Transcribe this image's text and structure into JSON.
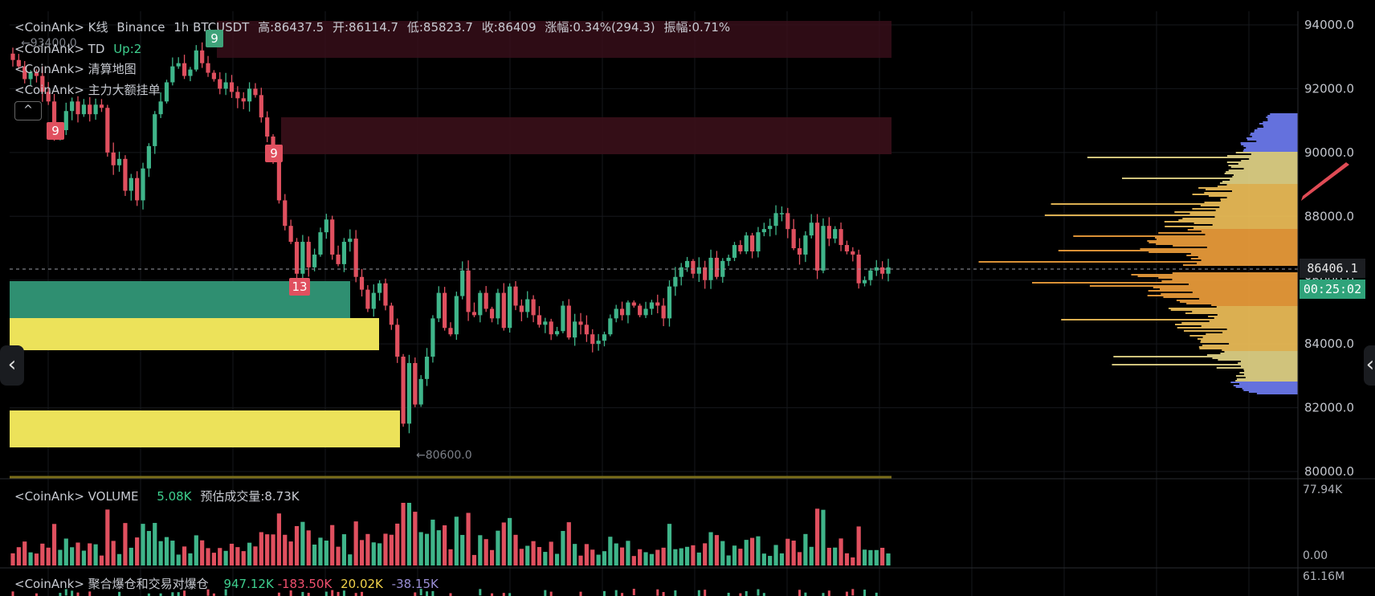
{
  "legend": {
    "kline": {
      "label": "<CoinAnk> K线",
      "exchange": "Binance",
      "interval": "1h",
      "symbol": "BTCUSDT",
      "high": "高:86437.5",
      "open": "开:86114.7",
      "low": "低:85823.7",
      "close": "收:86409",
      "change": "涨幅:0.34%(294.3)",
      "amplitude": "振幅:0.71%"
    },
    "td": {
      "label": "<CoinAnk> TD",
      "value": "Up:2"
    },
    "liq_map": {
      "label": "<CoinAnk> 清算地图"
    },
    "big_orders": {
      "label": "<CoinAnk> 主力大额挂单"
    },
    "volume": {
      "label": "<CoinAnk> VOLUME",
      "value": "5.08K",
      "estimate": "预估成交量:8.73K"
    },
    "liq_agg": {
      "label": "<CoinAnk> 聚合爆仓和交易对爆仓",
      "v1": "947.12K",
      "v2": "-183.50K",
      "v3": "20.02K",
      "v4": "-38.15K"
    }
  },
  "collapse_symbol": "^",
  "nav": {
    "left": "‹",
    "right": "‹"
  },
  "price_axis": {
    "ticks": [
      "94000.0",
      "92000.0",
      "90000.0",
      "88000.0",
      "86000.0",
      "84000.0",
      "82000.0",
      "80000.0"
    ],
    "current_price": "86406.1",
    "countdown": "00:25:02"
  },
  "volume_axis": {
    "top": "77.94K",
    "zero": "0.00"
  },
  "liq_axis": {
    "top": "61.16M"
  },
  "annotations": {
    "high_marker": "←93400.0",
    "low_marker": "←80600.0"
  },
  "td_counts": [
    {
      "text": "9",
      "color": "#3fa37a"
    },
    {
      "text": "9",
      "color": "#e0505f"
    },
    {
      "text": "9",
      "color": "#e0505f"
    },
    {
      "text": "13",
      "color": "#e0505f"
    }
  ],
  "colors": {
    "up": "#3fb58a",
    "down": "#e0505f",
    "grid": "#16181c",
    "zone_green": "#2f8f71",
    "zone_yellow": "#ece25a",
    "zone_red": "#3a0f1a"
  },
  "closes": [
    92900,
    92700,
    92300,
    92500,
    92400,
    91900,
    91600,
    90500,
    90700,
    91300,
    91600,
    91200,
    91500,
    91200,
    91500,
    91400,
    90000,
    89600,
    89800,
    88800,
    89200,
    88500,
    89500,
    90200,
    91200,
    91600,
    92200,
    92700,
    92800,
    92400,
    92600,
    93200,
    92800,
    92500,
    92300,
    92000,
    92200,
    91900,
    91700,
    91600,
    92000,
    91800,
    91100,
    90500,
    89800,
    88500,
    87700,
    87200,
    86200,
    87200,
    86400,
    86800,
    87500,
    87900,
    86800,
    86500,
    87200,
    87300,
    86100,
    85700,
    85100,
    85600,
    85900,
    85200,
    84600,
    83600,
    81500,
    83400,
    82100,
    82900,
    83600,
    84800,
    85600,
    84500,
    84300,
    85500,
    86300,
    85000,
    84900,
    85600,
    85100,
    84800,
    85600,
    84500,
    85800,
    85200,
    85000,
    85400,
    84900,
    84600,
    84700,
    84300,
    84400,
    85200,
    84200,
    84700,
    84600,
    84300,
    84000,
    84100,
    84300,
    84800,
    85100,
    84900,
    85300,
    85200,
    84900,
    85100,
    85300,
    85200,
    84800,
    85800,
    86100,
    86400,
    86600,
    86200,
    86400,
    86000,
    86700,
    86100,
    86600,
    86700,
    87100,
    86900,
    87400,
    86900,
    87500,
    87600,
    87700,
    88100,
    88100,
    87600,
    87000,
    86800,
    87400,
    87800,
    86300,
    87700,
    87300,
    87600,
    87100,
    86900,
    86800,
    85900,
    86000,
    86300,
    86400,
    86200,
    86400
  ]
}
